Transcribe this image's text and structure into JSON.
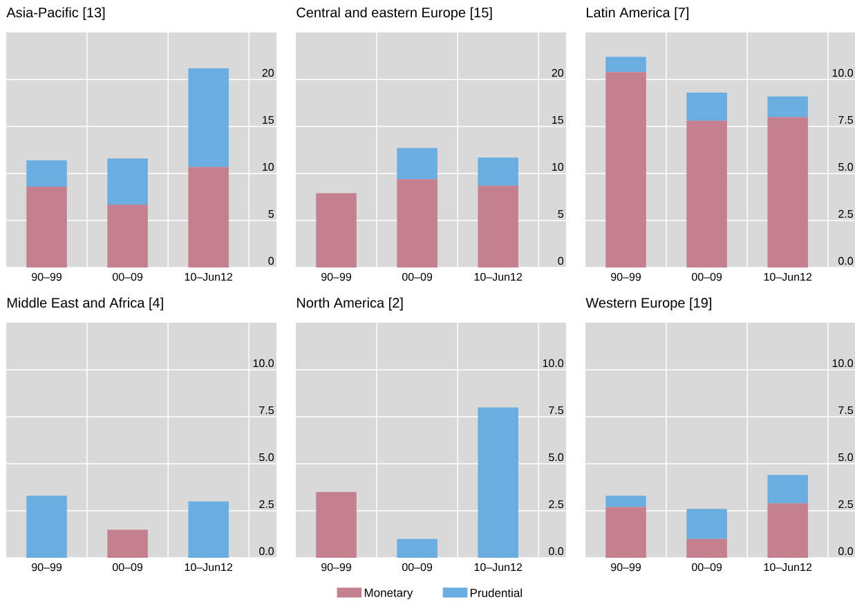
{
  "chart_data": [
    {
      "type": "bar",
      "title": "Asia-Pacific [13]",
      "categories": [
        "90–99",
        "00–09",
        "10–Jun12"
      ],
      "stacked": true,
      "grid": true,
      "ylim": [
        0,
        25
      ],
      "yticks": [
        0,
        5,
        10,
        15,
        20
      ],
      "series": [
        {
          "color": "#c4808f",
          "values": [
            8.6,
            6.7,
            10.7
          ]
        },
        {
          "color": "#6aade0",
          "values": [
            2.8,
            4.9,
            10.5
          ]
        }
      ]
    },
    {
      "type": "bar",
      "title": "Central and eastern Europe [15]",
      "categories": [
        "90–99",
        "00–09",
        "10–Jun12"
      ],
      "stacked": true,
      "grid": true,
      "ylim": [
        0,
        25
      ],
      "yticks": [
        0,
        5,
        10,
        15,
        20
      ],
      "series": [
        {
          "color": "#c4808f",
          "values": [
            7.9,
            9.4,
            8.7
          ]
        },
        {
          "color": "#6aade0",
          "values": [
            0,
            3.3,
            3.0
          ]
        }
      ]
    },
    {
      "type": "bar",
      "title": "Latin America [7]",
      "categories": [
        "90–99",
        "00–09",
        "10–Jun12"
      ],
      "stacked": true,
      "grid": true,
      "ylim": [
        0,
        12.5
      ],
      "yticks": [
        {
          "value": 0,
          "label": "0.0"
        },
        {
          "value": 2.5,
          "label": "2.5"
        },
        {
          "value": 5,
          "label": "5.0"
        },
        {
          "value": 7.5,
          "label": "7.5"
        },
        {
          "value": 10,
          "label": "10.0"
        }
      ],
      "series": [
        {
          "color": "#c4808f",
          "values": [
            10.4,
            7.8,
            8.0
          ]
        },
        {
          "color": "#6aade0",
          "values": [
            0.8,
            1.5,
            1.1
          ]
        }
      ]
    },
    {
      "type": "bar",
      "title": "Middle East and Africa [4]",
      "categories": [
        "90–99",
        "00–09",
        "10–Jun12"
      ],
      "stacked": true,
      "grid": true,
      "ylim": [
        0,
        12.5
      ],
      "yticks": [
        {
          "value": 0,
          "label": "0.0"
        },
        {
          "value": 2.5,
          "label": "2.5"
        },
        {
          "value": 5,
          "label": "5.0"
        },
        {
          "value": 7.5,
          "label": "7.5"
        },
        {
          "value": 10,
          "label": "10.0"
        }
      ],
      "series": [
        {
          "color": "#c4808f",
          "values": [
            0,
            1.5,
            0
          ]
        },
        {
          "color": "#6aade0",
          "values": [
            3.3,
            0,
            3.0
          ]
        }
      ]
    },
    {
      "type": "bar",
      "title": "North America [2]",
      "categories": [
        "90–99",
        "00–09",
        "10–Jun12"
      ],
      "stacked": true,
      "grid": true,
      "legend": "bottom",
      "ylim": [
        0,
        12.5
      ],
      "yticks": [
        {
          "value": 0,
          "label": "0.0"
        },
        {
          "value": 2.5,
          "label": "2.5"
        },
        {
          "value": 5,
          "label": "5.0"
        },
        {
          "value": 7.5,
          "label": "7.5"
        },
        {
          "value": 10,
          "label": "10.0"
        }
      ],
      "series": [
        {
          "name": "Monetary",
          "color": "#c4808f",
          "values": [
            3.5,
            0,
            0
          ]
        },
        {
          "name": "Prudential",
          "color": "#6aade0",
          "values": [
            0,
            1.0,
            8.0
          ]
        }
      ]
    },
    {
      "type": "bar",
      "title": "Western Europe [19]",
      "categories": [
        "90–99",
        "00–09",
        "10–Jun12"
      ],
      "stacked": true,
      "grid": true,
      "ylim": [
        0,
        12.5
      ],
      "yticks": [
        {
          "value": 0,
          "label": "0.0"
        },
        {
          "value": 2.5,
          "label": "2.5"
        },
        {
          "value": 5,
          "label": "5.0"
        },
        {
          "value": 7.5,
          "label": "7.5"
        },
        {
          "value": 10,
          "label": "10.0"
        }
      ],
      "series": [
        {
          "color": "#c4808f",
          "values": [
            2.7,
            1.0,
            2.9
          ]
        },
        {
          "color": "#6aade0",
          "values": [
            0.6,
            1.6,
            1.5
          ]
        }
      ]
    }
  ]
}
